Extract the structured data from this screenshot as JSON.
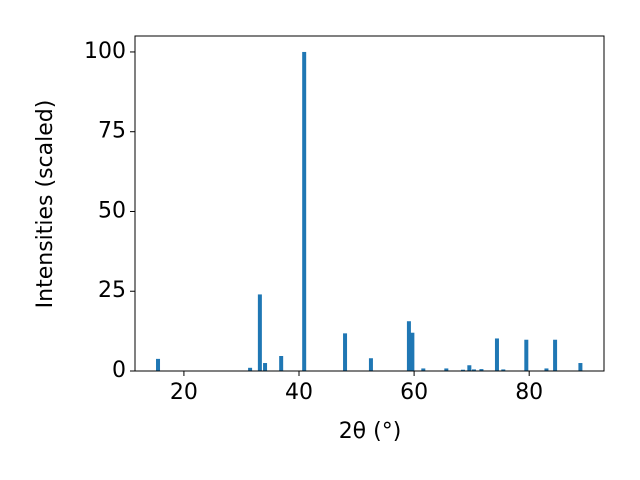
{
  "chart_data": {
    "type": "bar",
    "xlabel": "2θ (°)",
    "ylabel": "Intensities (scaled)",
    "color": "#1f77b4",
    "x": [
      15.5,
      31.5,
      33.2,
      34.1,
      36.9,
      40.9,
      48.0,
      52.5,
      59.1,
      59.7,
      61.6,
      65.6,
      68.5,
      69.6,
      70.4,
      71.7,
      74.4,
      75.5,
      79.5,
      83.0,
      84.5,
      88.9
    ],
    "values": [
      3.8,
      1,
      24,
      2.5,
      4.7,
      100,
      11.8,
      4,
      15.6,
      12,
      0.8,
      0.8,
      0.4,
      1.8,
      0.5,
      0.6,
      10.2,
      0.5,
      9.8,
      0.8,
      9.8,
      2.5
    ],
    "xlim": [
      11.5,
      93.0
    ],
    "xticks": [
      20,
      40,
      60,
      80
    ],
    "ylim": [
      0,
      105
    ],
    "yticks": [
      0,
      25,
      50,
      75,
      100
    ]
  }
}
